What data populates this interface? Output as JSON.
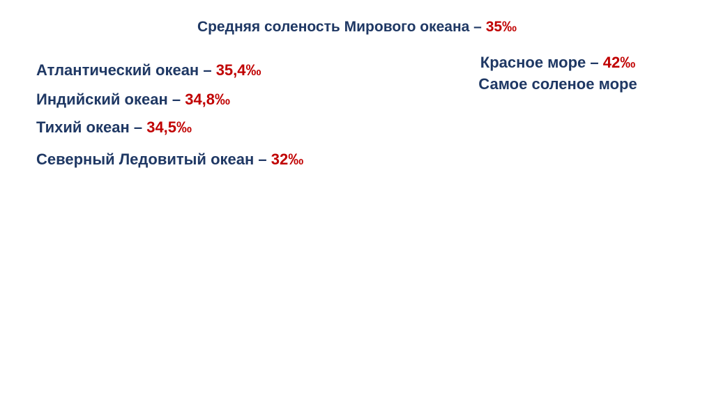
{
  "title": {
    "text": "Средняя соленость Мирового океана – ",
    "value": "35‰"
  },
  "oceans": [
    {
      "label": "Атлантический океан – ",
      "value": "35,4‰"
    },
    {
      "label": "Индийский океан – ",
      "value": "34,8‰"
    },
    {
      "label": "Тихий океан – ",
      "value": "34,5‰"
    },
    {
      "label": "Северный Ледовитый океан – ",
      "value": "32‰"
    }
  ],
  "red_sea": {
    "label": "Красное море – ",
    "value": "42‰",
    "note": "Самое соленое море"
  },
  "colors": {
    "text": "#1f3864",
    "value": "#c00000",
    "background": "#ffffff"
  }
}
